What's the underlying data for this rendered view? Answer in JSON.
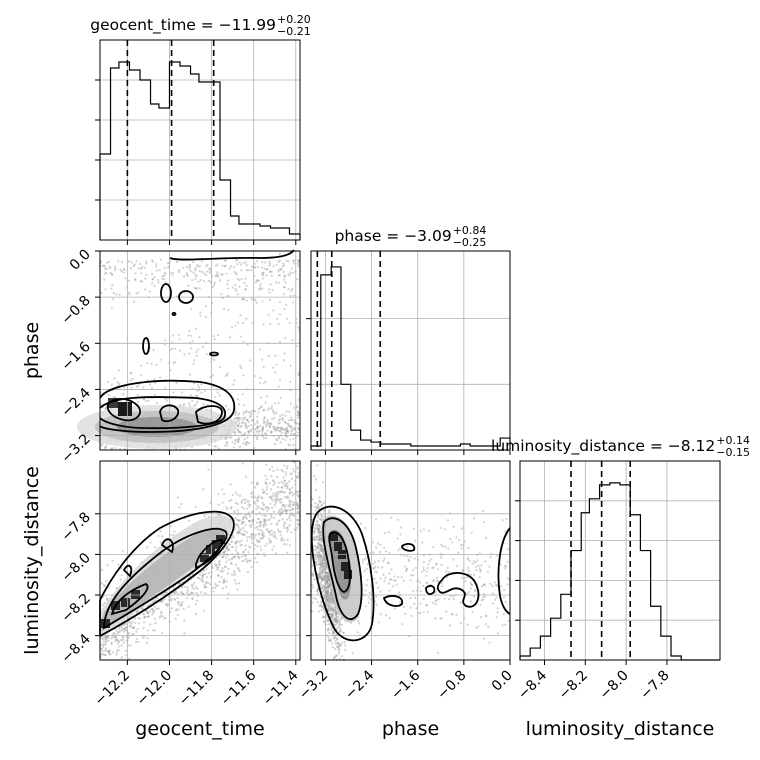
{
  "chart_data": {
    "type": "corner",
    "parameters": [
      "geocent_time",
      "phase",
      "luminosity_distance"
    ],
    "axis_labels": {
      "geocent_time": "geocent_time",
      "phase": "phase",
      "luminosity_distance": "luminosity_distance"
    },
    "ranges": {
      "geocent_time": [
        -12.33,
        -11.38
      ],
      "phase": [
        -3.45,
        0.0
      ],
      "luminosity_distance": [
        -8.52,
        -7.54
      ]
    },
    "ticks": {
      "geocent_time": [
        -12.2,
        -12.0,
        -11.8,
        -11.6,
        -11.4
      ],
      "phase": [
        -3.2,
        -2.4,
        -1.6,
        -0.8,
        0.0
      ],
      "luminosity_distance": [
        -8.4,
        -8.2,
        -8.0,
        -7.8
      ]
    },
    "tick_labels": {
      "geocent_time": [
        "−12.2",
        "−12.0",
        "−11.8",
        "−11.6",
        "−11.4"
      ],
      "phase": [
        "−3.2",
        "−2.4",
        "−1.6",
        "−0.8",
        "0.0"
      ],
      "luminosity_distance": [
        "−8.4",
        "−8.2",
        "−8.0",
        "−7.8"
      ]
    },
    "titles": [
      {
        "param": "geocent_time",
        "prefix": "geocent_time = −11.99",
        "sup": "+0.20",
        "sub": "−0.21"
      },
      {
        "param": "phase",
        "prefix": "phase = −3.09",
        "sup": "+0.84",
        "sub": "−0.25"
      },
      {
        "param": "luminosity_distance",
        "prefix": "luminosity_distance = −8.12",
        "sup": "+0.14",
        "sub": "−0.15"
      }
    ],
    "quantiles": {
      "geocent_time": [
        -12.2,
        -11.99,
        -11.79
      ],
      "phase": [
        -3.34,
        -3.09,
        -2.25
      ],
      "luminosity_distance": [
        -8.27,
        -8.12,
        -7.98
      ]
    },
    "histograms": {
      "geocent_time": {
        "edges": [
          -12.33,
          -12.28,
          -12.24,
          -12.19,
          -12.14,
          -12.09,
          -12.05,
          -12.0,
          -11.95,
          -11.9,
          -11.86,
          -11.81,
          -11.76,
          -11.71,
          -11.67,
          -11.62,
          -11.57,
          -11.52,
          -11.48,
          -11.43,
          -11.38
        ],
        "counts": [
          0.43,
          0.86,
          0.89,
          0.85,
          0.8,
          0.68,
          0.66,
          0.89,
          0.87,
          0.83,
          0.79,
          0.79,
          0.3,
          0.12,
          0.08,
          0.08,
          0.07,
          0.06,
          0.06,
          0.03
        ],
        "grid_levels": [
          0.2,
          0.4,
          0.6,
          0.8
        ]
      },
      "phase": {
        "edges": [
          -3.45,
          -3.28,
          -3.1,
          -2.93,
          -2.76,
          -2.59,
          -2.41,
          -2.24,
          -2.07,
          -1.9,
          -1.72,
          -1.55,
          -1.38,
          -1.21,
          -1.04,
          -0.86,
          -0.69,
          -0.52,
          -0.35,
          -0.17,
          0.0
        ],
        "counts": [
          0.02,
          0.88,
          0.92,
          0.33,
          0.1,
          0.05,
          0.04,
          0.03,
          0.03,
          0.03,
          0.02,
          0.02,
          0.02,
          0.02,
          0.02,
          0.03,
          0.02,
          0.02,
          0.02,
          0.06
        ],
        "grid_levels": [
          0.33,
          0.66
        ]
      },
      "luminosity_distance": {
        "edges": [
          -8.52,
          -8.47,
          -8.42,
          -8.37,
          -8.32,
          -8.27,
          -8.22,
          -8.18,
          -8.13,
          -8.08,
          -8.03,
          -7.98,
          -7.93,
          -7.88,
          -7.83,
          -7.78,
          -7.73,
          -7.68,
          -7.64,
          -7.59,
          -7.54
        ],
        "counts": [
          0.02,
          0.06,
          0.12,
          0.21,
          0.33,
          0.55,
          0.74,
          0.81,
          0.88,
          0.89,
          0.88,
          0.73,
          0.55,
          0.27,
          0.12,
          0.02,
          0.0,
          0.0,
          0.0,
          0.0
        ],
        "grid_levels": [
          0.2,
          0.4,
          0.6,
          0.8
        ]
      }
    },
    "contours_2d": {
      "phase_vs_geocent_time": {
        "x": "geocent_time",
        "y": "phase",
        "dense_region": {
          "x_center": -12.06,
          "y_center": -3.05,
          "x_halfwidth": 0.27,
          "y_halfwidth": 0.17
        },
        "outer_level": {
          "x_range": [
            -12.33,
            -11.68
          ],
          "y_range": [
            -3.4,
            -2.55
          ]
        },
        "islands": [
          [
            -12.05,
            -0.6
          ],
          [
            -11.82,
            -0.6
          ],
          [
            -12.01,
            -1.2
          ],
          [
            -12.14,
            -1.87
          ],
          [
            -11.79,
            -2.02
          ]
        ],
        "top_band": {
          "x_range": [
            -12.05,
            -11.38
          ],
          "y_min": -0.3
        }
      },
      "luminosity_distance_vs_geocent_time": {
        "x": "geocent_time",
        "y": "luminosity_distance",
        "ridge": [
          [
            -12.33,
            -8.42
          ],
          [
            -12.2,
            -8.33
          ],
          [
            -12.05,
            -8.2
          ],
          [
            -11.9,
            -8.1
          ],
          [
            -11.78,
            -8.0
          ]
        ],
        "outer_level": {
          "x_range": [
            -12.33,
            -11.75
          ],
          "y_range": [
            -8.45,
            -7.9
          ]
        }
      },
      "luminosity_distance_vs_phase": {
        "x": "phase",
        "y": "luminosity_distance",
        "ridge": [
          [
            -3.3,
            -7.95
          ],
          [
            -3.15,
            -8.1
          ],
          [
            -3.0,
            -8.25
          ]
        ],
        "outer_level": {
          "x_range": [
            -3.45,
            -2.75
          ],
          "y_range": [
            -8.45,
            -7.85
          ]
        },
        "islands": [
          [
            -1.15,
            -8.18
          ],
          [
            -2.35,
            -8.28
          ],
          [
            -0.8,
            -8.25
          ]
        ]
      }
    }
  }
}
